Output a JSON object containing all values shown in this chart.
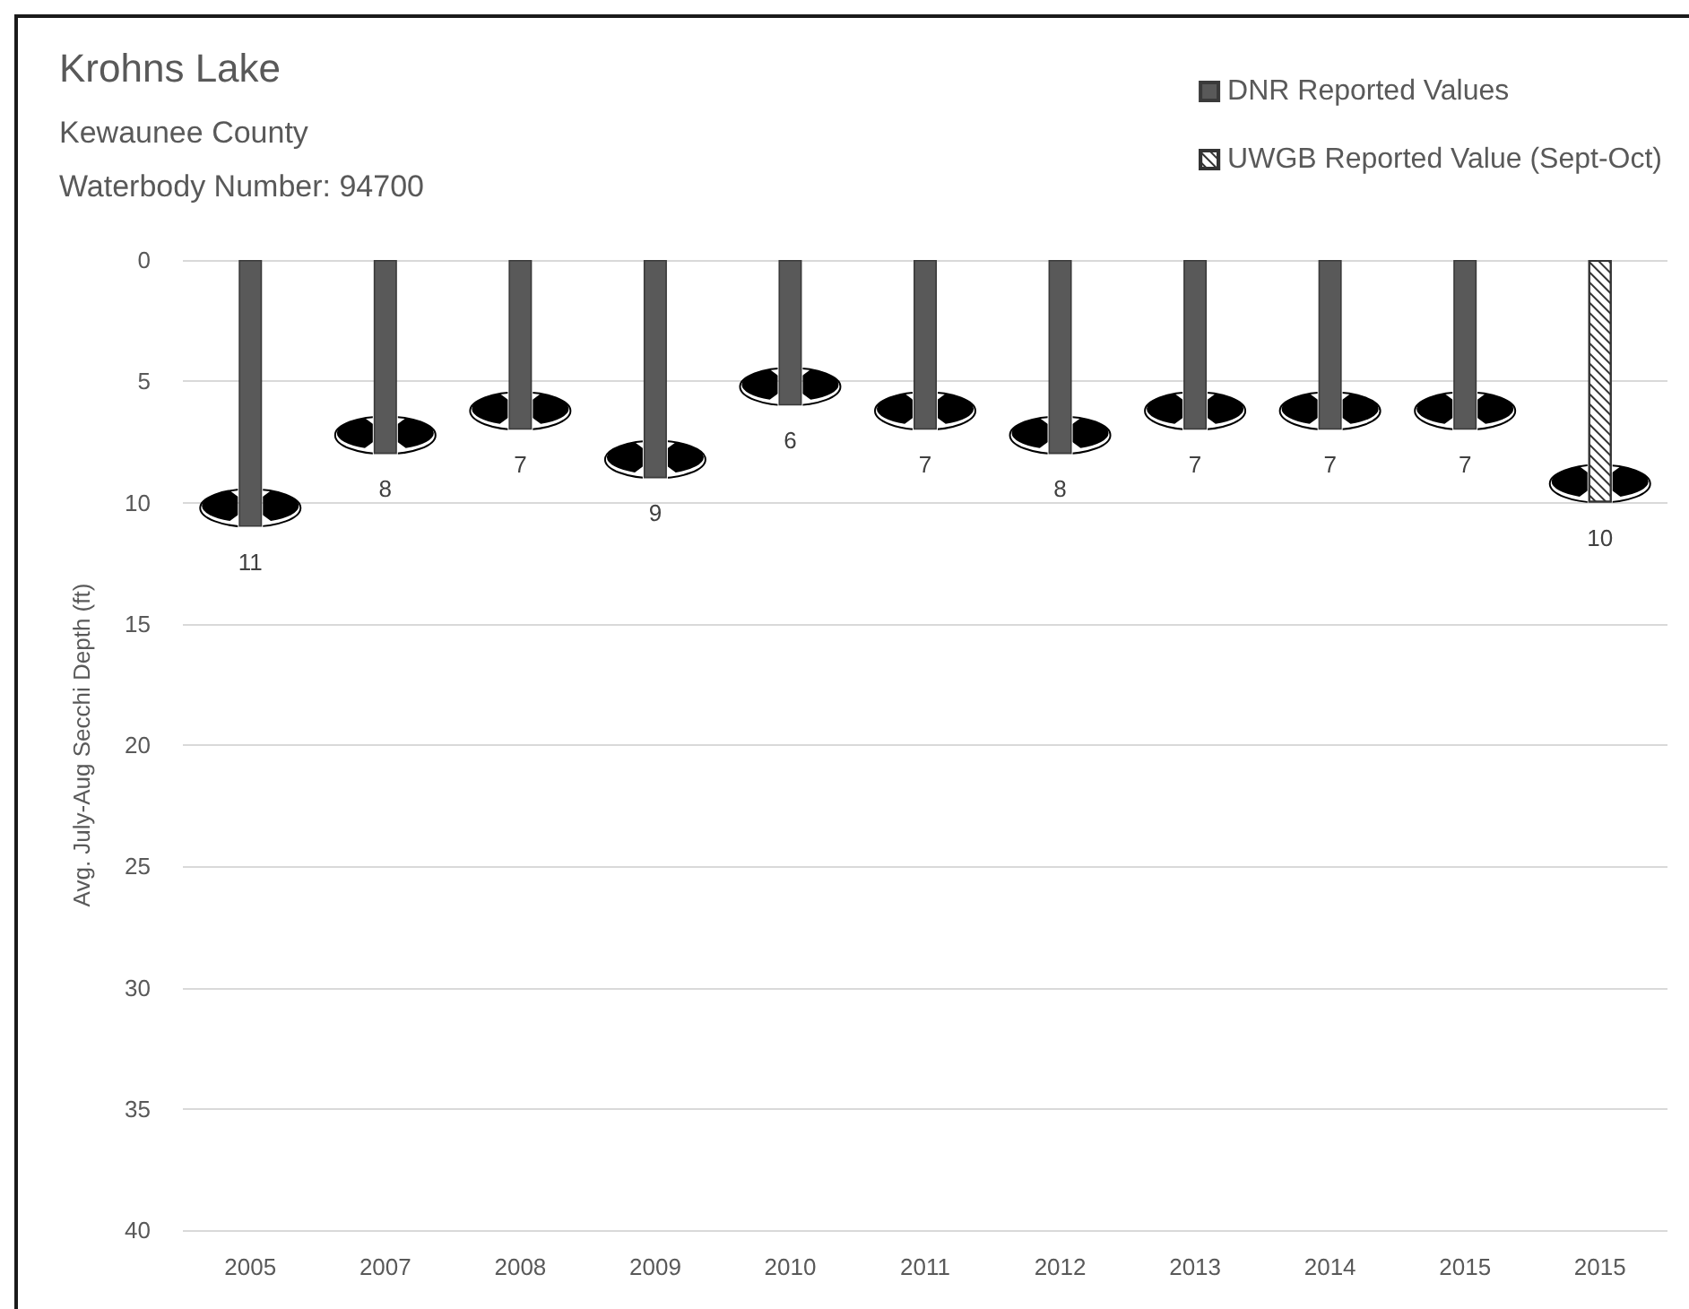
{
  "chart_data": {
    "type": "bar",
    "title": "Krohns Lake",
    "subtitle": "Kewaunee County\nWaterbody Number: 94700",
    "ylabel": "Avg. July-Aug Secchi Depth (ft)",
    "categories": [
      "2005",
      "2007",
      "2008",
      "2009",
      "2010",
      "2011",
      "2012",
      "2013",
      "2014",
      "2015",
      "2015"
    ],
    "series": [
      {
        "name": "DNR Reported Values",
        "color": "#595959",
        "values": [
          11,
          8,
          7,
          9,
          6,
          7,
          8,
          7,
          7,
          7,
          null
        ]
      },
      {
        "name": "UWGB Reported Value (Sept-Oct)",
        "color": "#ffffff",
        "values": [
          null,
          null,
          null,
          null,
          null,
          null,
          null,
          null,
          null,
          null,
          10
        ]
      }
    ],
    "ylim": [
      40,
      0
    ],
    "yticks": [
      0,
      5,
      10,
      15,
      20,
      25,
      30,
      35,
      40
    ],
    "grid": "y",
    "legend": "top right",
    "data_labels": true
  }
}
